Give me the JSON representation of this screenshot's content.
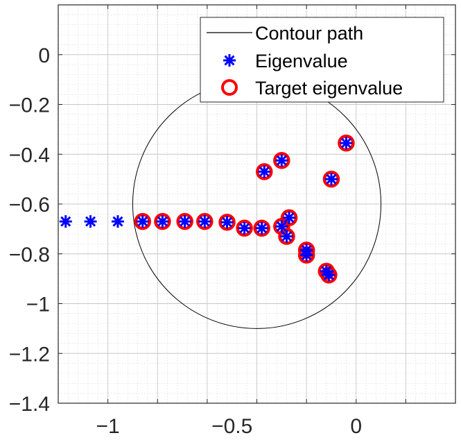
{
  "chart_data": {
    "type": "scatter",
    "title": "",
    "xlabel": "",
    "ylabel": "",
    "xlim": [
      -1.2,
      0.4
    ],
    "ylim": [
      -1.4,
      0.2
    ],
    "x_ticks": [
      {
        "value": -1,
        "label": "−1"
      },
      {
        "value": -0.5,
        "label": "−0.5"
      },
      {
        "value": 0,
        "label": "0"
      }
    ],
    "y_ticks": [
      {
        "value": 0,
        "label": "0"
      },
      {
        "value": -0.2,
        "label": "−0.2"
      },
      {
        "value": -0.4,
        "label": "−0.4"
      },
      {
        "value": -0.6,
        "label": "−0.6"
      },
      {
        "value": -0.8,
        "label": "−0.8"
      },
      {
        "value": -1,
        "label": "−1"
      },
      {
        "value": -1.2,
        "label": "−1.2"
      },
      {
        "value": -1.4,
        "label": "−1.4"
      }
    ],
    "grid": true,
    "minor_grid": true,
    "legend_position": "top-right",
    "contour": {
      "name": "Contour path",
      "center": [
        -0.4,
        -0.6
      ],
      "radius": 0.5,
      "color": "#000000"
    },
    "series": [
      {
        "name": "Eigenvalue",
        "marker": "asterisk",
        "color": "#0000ff",
        "points": [
          [
            -1.17,
            -0.67
          ],
          [
            -1.07,
            -0.67
          ],
          [
            -0.96,
            -0.67
          ],
          [
            -0.86,
            -0.67
          ],
          [
            -0.78,
            -0.67
          ],
          [
            -0.69,
            -0.67
          ],
          [
            -0.61,
            -0.67
          ],
          [
            -0.52,
            -0.673
          ],
          [
            -0.45,
            -0.697
          ],
          [
            -0.38,
            -0.697
          ],
          [
            -0.3,
            -0.69
          ],
          [
            -0.27,
            -0.655
          ],
          [
            -0.28,
            -0.73
          ],
          [
            -0.2,
            -0.785
          ],
          [
            -0.2,
            -0.805
          ],
          [
            -0.12,
            -0.87
          ],
          [
            -0.11,
            -0.885
          ],
          [
            -0.37,
            -0.47
          ],
          [
            -0.3,
            -0.425
          ],
          [
            -0.1,
            -0.5
          ],
          [
            -0.04,
            -0.355
          ]
        ]
      },
      {
        "name": "Target eigenvalue",
        "marker": "circle",
        "color": "#ff0000",
        "points": [
          [
            -0.86,
            -0.67
          ],
          [
            -0.78,
            -0.67
          ],
          [
            -0.69,
            -0.67
          ],
          [
            -0.61,
            -0.67
          ],
          [
            -0.52,
            -0.673
          ],
          [
            -0.45,
            -0.697
          ],
          [
            -0.38,
            -0.697
          ],
          [
            -0.3,
            -0.69
          ],
          [
            -0.27,
            -0.655
          ],
          [
            -0.28,
            -0.73
          ],
          [
            -0.2,
            -0.785
          ],
          [
            -0.2,
            -0.805
          ],
          [
            -0.12,
            -0.87
          ],
          [
            -0.11,
            -0.885
          ],
          [
            -0.37,
            -0.47
          ],
          [
            -0.3,
            -0.425
          ],
          [
            -0.1,
            -0.5
          ],
          [
            -0.04,
            -0.355
          ]
        ]
      }
    ]
  }
}
